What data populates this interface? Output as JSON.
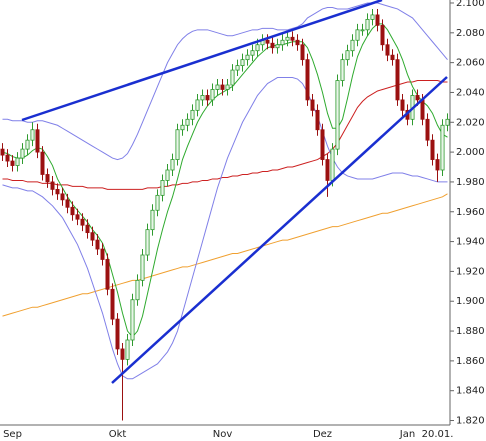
{
  "chart_data": {
    "type": "candlestick",
    "categories": [
      null,
      null,
      "Sep",
      null,
      null,
      null,
      null,
      null,
      null,
      null,
      null,
      null,
      null,
      null,
      null,
      null,
      null,
      null,
      null,
      null,
      null,
      null,
      null,
      "Okt",
      null,
      null,
      null,
      null,
      null,
      null,
      null,
      null,
      null,
      null,
      null,
      null,
      null,
      null,
      null,
      null,
      null,
      null,
      null,
      null,
      "Nov",
      null,
      null,
      null,
      null,
      null,
      null,
      null,
      null,
      null,
      null,
      null,
      null,
      null,
      null,
      null,
      null,
      null,
      null,
      null,
      "Dez",
      null,
      null,
      null,
      null,
      null,
      null,
      null,
      null,
      null,
      null,
      null,
      null,
      null,
      null,
      null,
      null,
      "Jan",
      null,
      null,
      null,
      null,
      null,
      "20.01.",
      null,
      null
    ],
    "open": [
      2002,
      1998,
      1994,
      1991,
      1996,
      2002,
      2008,
      2015,
      2000,
      1985,
      1980,
      1975,
      1972,
      1968,
      1963,
      1958,
      1955,
      1951,
      1946,
      1941,
      1935,
      1928,
      1908,
      1888,
      1868,
      1861,
      1874,
      1901,
      1914,
      1931,
      1948,
      1961,
      1971,
      1981,
      1988,
      1995,
      2015,
      2018,
      2022,
      2028,
      2035,
      2038,
      2035,
      2042,
      2045,
      2042,
      2045,
      2055,
      2058,
      2062,
      2065,
      2068,
      2072,
      2075,
      2073,
      2070,
      2072,
      2075,
      2077,
      2075,
      2072,
      2062,
      2035,
      2028,
      2015,
      1995,
      1981,
      2002,
      2048,
      2062,
      2068,
      2075,
      2082,
      2082,
      2089,
      2092,
      2085,
      2072,
      2065,
      2062,
      2035,
      2028,
      2022,
      2038,
      2035,
      2022,
      2008,
      1995,
      1988,
      2018
    ],
    "high": [
      2006,
      2002,
      1998,
      2000,
      2006,
      2012,
      2020,
      2019,
      2004,
      1989,
      1984,
      1979,
      1976,
      1972,
      1967,
      1962,
      1959,
      1955,
      1950,
      1945,
      1939,
      1932,
      1912,
      1892,
      1872,
      1878,
      1905,
      1918,
      1935,
      1952,
      1965,
      1975,
      1985,
      1992,
      1999,
      2019,
      2022,
      2026,
      2032,
      2039,
      2042,
      2042,
      2046,
      2049,
      2049,
      2049,
      2059,
      2062,
      2066,
      2069,
      2072,
      2076,
      2079,
      2079,
      2077,
      2076,
      2079,
      2081,
      2081,
      2079,
      2076,
      2066,
      2039,
      2032,
      2019,
      1999,
      2006,
      2052,
      2066,
      2072,
      2079,
      2086,
      2086,
      2093,
      2096,
      2096,
      2089,
      2076,
      2069,
      2066,
      2039,
      2032,
      2042,
      2042,
      2039,
      2026,
      2012,
      1999,
      2022,
      2026
    ],
    "low": [
      1994,
      1990,
      1987,
      1987,
      1992,
      1998,
      2004,
      1996,
      1981,
      1976,
      1971,
      1968,
      1964,
      1959,
      1954,
      1951,
      1947,
      1942,
      1937,
      1931,
      1924,
      1904,
      1884,
      1864,
      1820,
      1857,
      1870,
      1897,
      1910,
      1927,
      1944,
      1957,
      1967,
      1977,
      1984,
      1991,
      2011,
      2014,
      2018,
      2024,
      2031,
      2031,
      2031,
      2038,
      2038,
      2038,
      2041,
      2051,
      2054,
      2058,
      2061,
      2064,
      2068,
      2069,
      2066,
      2066,
      2068,
      2071,
      2071,
      2068,
      2058,
      2031,
      2024,
      2011,
      1991,
      1970,
      1977,
      1998,
      2044,
      2058,
      2064,
      2071,
      2078,
      2078,
      2085,
      2081,
      2068,
      2061,
      2058,
      2031,
      2024,
      2018,
      2018,
      2031,
      2018,
      2004,
      1991,
      1980,
      1984,
      2014
    ],
    "close": [
      1998,
      1994,
      1991,
      1996,
      2002,
      2008,
      2015,
      2000,
      1985,
      1980,
      1975,
      1972,
      1968,
      1963,
      1958,
      1955,
      1951,
      1946,
      1941,
      1935,
      1928,
      1908,
      1888,
      1868,
      1861,
      1874,
      1901,
      1914,
      1931,
      1948,
      1961,
      1971,
      1981,
      1988,
      1995,
      2015,
      2018,
      2022,
      2028,
      2035,
      2038,
      2035,
      2042,
      2045,
      2042,
      2045,
      2055,
      2058,
      2062,
      2065,
      2068,
      2072,
      2075,
      2073,
      2070,
      2072,
      2075,
      2077,
      2075,
      2072,
      2062,
      2035,
      2028,
      2015,
      1995,
      1981,
      2002,
      2048,
      2062,
      2068,
      2075,
      2082,
      2082,
      2089,
      2092,
      2085,
      2072,
      2065,
      2062,
      2035,
      2028,
      2022,
      2038,
      2035,
      2022,
      2008,
      1995,
      1988,
      2018,
      2022
    ],
    "up_color": "#2f9a2f",
    "down_color": "#9b1111",
    "overlays": [
      {
        "color": "#f0a030",
        "values": [
          1890,
          1891,
          1892,
          1893,
          1894,
          1895,
          1896,
          1896,
          1897,
          1898,
          1899,
          1900,
          1901,
          1902,
          1903,
          1904,
          1905,
          1905,
          1906,
          1907,
          1908,
          1909,
          1910,
          1911,
          1912,
          1913,
          1914,
          1914,
          1915,
          1916,
          1917,
          1918,
          1919,
          1920,
          1921,
          1922,
          1923,
          1923,
          1924,
          1925,
          1926,
          1927,
          1928,
          1929,
          1930,
          1931,
          1932,
          1932,
          1933,
          1934,
          1935,
          1936,
          1937,
          1938,
          1939,
          1940,
          1941,
          1941,
          1942,
          1943,
          1944,
          1945,
          1946,
          1947,
          1948,
          1949,
          1950,
          1950,
          1951,
          1952,
          1953,
          1954,
          1955,
          1956,
          1957,
          1958,
          1959,
          1959,
          1960,
          1961,
          1962,
          1963,
          1964,
          1965,
          1966,
          1967,
          1968,
          1969,
          1970,
          1972
        ]
      },
      {
        "color": "#cc2020",
        "values": [
          1982,
          1982,
          1981,
          1981,
          1981,
          1980,
          1980,
          1980,
          1979,
          1979,
          1979,
          1978,
          1978,
          1978,
          1977,
          1977,
          1977,
          1976,
          1976,
          1976,
          1976,
          1975,
          1975,
          1975,
          1975,
          1975,
          1975,
          1975,
          1975,
          1976,
          1976,
          1976,
          1977,
          1977,
          1978,
          1978,
          1979,
          1979,
          1980,
          1980,
          1981,
          1981,
          1982,
          1982,
          1983,
          1983,
          1984,
          1984,
          1985,
          1985,
          1986,
          1986,
          1987,
          1987,
          1988,
          1988,
          1989,
          1990,
          1990,
          1991,
          1992,
          1993,
          1994,
          1995,
          1997,
          1999,
          2002,
          2006,
          2012,
          2018,
          2024,
          2030,
          2034,
          2037,
          2039,
          2041,
          2042,
          2043,
          2044,
          2045,
          2046,
          2047,
          2047,
          2048,
          2048,
          2048,
          2048,
          2048,
          2047,
          2047
        ]
      },
      {
        "color": "#8080e8",
        "values": [
          2022,
          2022,
          2021,
          2021,
          2021,
          2020,
          2020,
          2021,
          2021,
          2020,
          2019,
          2018,
          2016,
          2014,
          2012,
          2010,
          2008,
          2006,
          2004,
          2002,
          2000,
          1998,
          1996,
          1995,
          1996,
          1999,
          2005,
          2012,
          2020,
          2028,
          2036,
          2044,
          2052,
          2060,
          2066,
          2072,
          2076,
          2079,
          2081,
          2082,
          2082,
          2082,
          2081,
          2080,
          2079,
          2078,
          2078,
          2079,
          2080,
          2081,
          2082,
          2082,
          2083,
          2083,
          2083,
          2082,
          2082,
          2082,
          2083,
          2084,
          2086,
          2090,
          2092,
          2094,
          2096,
          2097,
          2097,
          2096,
          2096,
          2096,
          2097,
          2098,
          2099,
          2100,
          2100,
          2100,
          2099,
          2098,
          2097,
          2096,
          2094,
          2092,
          2090,
          2086,
          2082,
          2078,
          2074,
          2070,
          2066,
          2062
        ]
      },
      {
        "color": "#8080e8",
        "values": [
          1978,
          1977,
          1976,
          1976,
          1975,
          1974,
          1974,
          1972,
          1970,
          1967,
          1964,
          1960,
          1956,
          1950,
          1944,
          1938,
          1930,
          1922,
          1912,
          1902,
          1892,
          1880,
          1868,
          1858,
          1850,
          1848,
          1848,
          1850,
          1852,
          1854,
          1856,
          1858,
          1862,
          1866,
          1872,
          1880,
          1892,
          1904,
          1916,
          1928,
          1940,
          1952,
          1964,
          1976,
          1986,
          1996,
          2004,
          2012,
          2020,
          2026,
          2032,
          2038,
          2042,
          2046,
          2048,
          2050,
          2050,
          2050,
          2050,
          2049,
          2046,
          2040,
          2032,
          2024,
          2014,
          2004,
          1996,
          1990,
          1986,
          1984,
          1983,
          1982,
          1982,
          1982,
          1982,
          1983,
          1984,
          1985,
          1986,
          1986,
          1986,
          1985,
          1984,
          1984,
          1983,
          1982,
          1981,
          1980,
          1980,
          1980
        ]
      },
      {
        "color": "#2eaa2e",
        "values": [
          2000,
          1999,
          1997,
          1996,
          1996,
          1998,
          2001,
          2003,
          2002,
          1997,
          1991,
          1982,
          1976,
          1970,
          1965,
          1961,
          1957,
          1953,
          1948,
          1944,
          1939,
          1930,
          1918,
          1906,
          1892,
          1880,
          1876,
          1880,
          1890,
          1905,
          1920,
          1935,
          1948,
          1960,
          1970,
          1982,
          1995,
          2004,
          2012,
          2020,
          2026,
          2031,
          2035,
          2038,
          2040,
          2042,
          2044,
          2048,
          2052,
          2056,
          2060,
          2064,
          2067,
          2070,
          2071,
          2072,
          2072,
          2073,
          2074,
          2074,
          2074,
          2070,
          2062,
          2052,
          2040,
          2026,
          2016,
          2016,
          2022,
          2036,
          2051,
          2064,
          2072,
          2078,
          2083,
          2086,
          2086,
          2082,
          2076,
          2070,
          2062,
          2052,
          2044,
          2038,
          2034,
          2031,
          2026,
          2018,
          2012,
          2010
        ]
      }
    ],
    "ylim": [
      1817,
      2102
    ],
    "yticks": [
      {
        "value": 1820,
        "label": "1.820"
      },
      {
        "value": 1840,
        "label": "1.840"
      },
      {
        "value": 1860,
        "label": "1.860"
      },
      {
        "value": 1880,
        "label": "1.880"
      },
      {
        "value": 1900,
        "label": "1.900"
      },
      {
        "value": 1920,
        "label": "1.920"
      },
      {
        "value": 1940,
        "label": "1.940"
      },
      {
        "value": 1960,
        "label": "1.960"
      },
      {
        "value": 1980,
        "label": "1.980"
      },
      {
        "value": 2000,
        "label": "2.000"
      },
      {
        "value": 2020,
        "label": "2.020"
      },
      {
        "value": 2040,
        "label": "2.040"
      },
      {
        "value": 2060,
        "label": "2.060"
      },
      {
        "value": 2080,
        "label": "2.080"
      },
      {
        "value": 2100,
        "label": "2.100"
      }
    ],
    "grid": false
  }
}
